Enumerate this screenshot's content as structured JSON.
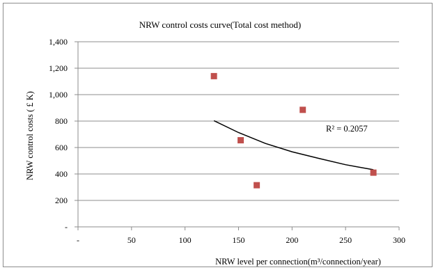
{
  "chart_data": {
    "type": "scatter",
    "title": "NRW control costs curve(Total cost  method)",
    "xlabel": "NRW  level per connection(m³/connection/year)",
    "ylabel": "NRW control costs ( £ K)",
    "xlim": [
      0,
      300
    ],
    "ylim": [
      0,
      1400
    ],
    "x_ticks": [
      {
        "value": 0,
        "label": "-"
      },
      {
        "value": 50,
        "label": "50"
      },
      {
        "value": 100,
        "label": "100"
      },
      {
        "value": 150,
        "label": "150"
      },
      {
        "value": 200,
        "label": "200"
      },
      {
        "value": 250,
        "label": "250"
      },
      {
        "value": 300,
        "label": "300"
      }
    ],
    "y_ticks": [
      {
        "value": 0,
        "label": "-"
      },
      {
        "value": 200,
        "label": "200"
      },
      {
        "value": 400,
        "label": "400"
      },
      {
        "value": 600,
        "label": "600"
      },
      {
        "value": 800,
        "label": "800"
      },
      {
        "value": 1000,
        "label": "1,000"
      },
      {
        "value": 1200,
        "label": "1,200"
      },
      {
        "value": 1400,
        "label": "1,400"
      }
    ],
    "grid": "horizontal",
    "legend": "none",
    "series": [
      {
        "points": [
          {
            "x": 127,
            "y": 1140
          },
          {
            "x": 152,
            "y": 655
          },
          {
            "x": 167,
            "y": 315
          },
          {
            "x": 210,
            "y": 885
          },
          {
            "x": 276,
            "y": 410
          }
        ],
        "color": "#c0504d",
        "marker": "square"
      }
    ],
    "trendline": {
      "type": "power",
      "x_range": [
        127,
        276
      ],
      "points": [
        {
          "x": 127,
          "y": 803
        },
        {
          "x": 150,
          "y": 713
        },
        {
          "x": 175,
          "y": 631
        },
        {
          "x": 200,
          "y": 568
        },
        {
          "x": 225,
          "y": 518
        },
        {
          "x": 250,
          "y": 470
        },
        {
          "x": 276,
          "y": 432
        }
      ],
      "color": "#000000"
    },
    "annotation": "R² = 0.2057"
  }
}
